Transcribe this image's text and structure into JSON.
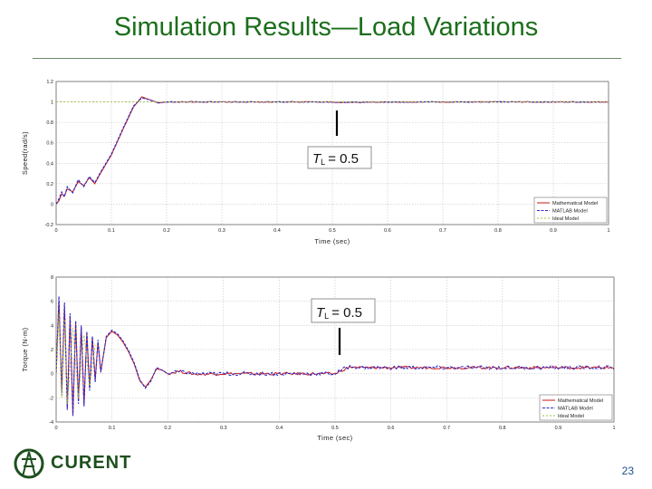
{
  "slide": {
    "title": "Simulation Results—Load Variations",
    "page_number": "23",
    "logo_text": "CURENT",
    "logo_icon": "tower-icon"
  },
  "colors": {
    "title": "#1b6e1b",
    "mathematical": "#cc2a2a",
    "matlab": "#2a2acc",
    "ideal": "#9bbf3a"
  },
  "chart_data": [
    {
      "type": "line",
      "xlabel": "Time (sec)",
      "ylabel": "Speed(rad/s)",
      "xlim": [
        0,
        1
      ],
      "ylim": [
        -0.2,
        1.2
      ],
      "xticks": [
        0,
        0.1,
        0.2,
        0.3,
        0.4,
        0.5,
        0.6,
        0.7,
        0.8,
        0.9,
        1
      ],
      "xtick_labels": [
        "0",
        "0.1",
        "0.2",
        "0.3",
        "0.4",
        "0.5",
        "0.6",
        "0.7",
        "0.8",
        "0.9",
        "1"
      ],
      "yticks": [
        -0.2,
        0,
        0.2,
        0.4,
        0.6,
        0.8,
        1,
        1.2
      ],
      "ytick_labels": [
        "-0.2",
        "0",
        "0.2",
        "0.4",
        "0.6",
        "0.8",
        "1",
        "1.2"
      ],
      "grid": true,
      "legend": "bottom-right",
      "annotation": {
        "text": "T",
        "subscript": "L",
        "value": "= 0.5",
        "x": 0.5
      },
      "series": [
        {
          "name": "Mathematical Model",
          "color": "#cc2a2a",
          "x": [
            0,
            0.005,
            0.01,
            0.015,
            0.02,
            0.03,
            0.04,
            0.05,
            0.06,
            0.07,
            0.08,
            0.1,
            0.12,
            0.14,
            0.155,
            0.17,
            0.185,
            0.2,
            0.25,
            0.3,
            0.5,
            0.51,
            0.6,
            0.8,
            1
          ],
          "y": [
            0,
            0.03,
            0.1,
            0.08,
            0.15,
            0.12,
            0.22,
            0.18,
            0.26,
            0.2,
            0.3,
            0.48,
            0.72,
            0.95,
            1.05,
            1.02,
            0.99,
            1.0,
            1.0,
            1.0,
            1.0,
            0.995,
            1.0,
            1.0,
            1.0
          ]
        },
        {
          "name": "MATLAB Model",
          "color": "#2a2acc",
          "x": [
            0,
            0.005,
            0.01,
            0.015,
            0.02,
            0.03,
            0.04,
            0.05,
            0.06,
            0.07,
            0.08,
            0.1,
            0.12,
            0.14,
            0.155,
            0.17,
            0.185,
            0.2,
            0.25,
            0.3,
            0.5,
            0.51,
            0.6,
            0.8,
            1
          ],
          "y": [
            0,
            0.05,
            0.12,
            0.07,
            0.17,
            0.11,
            0.24,
            0.17,
            0.27,
            0.21,
            0.31,
            0.49,
            0.73,
            0.96,
            1.04,
            1.02,
            0.99,
            1.0,
            1.0,
            1.0,
            1.0,
            0.995,
            1.0,
            1.0,
            1.0
          ]
        },
        {
          "name": "Ideal Model",
          "color": "#9bbf3a",
          "x": [
            0,
            0.1,
            0.2,
            0.3,
            0.5,
            0.6,
            0.8,
            1
          ],
          "y": [
            1.0,
            1.0,
            1.0,
            1.0,
            1.0,
            1.0,
            1.0,
            1.0
          ]
        }
      ]
    },
    {
      "type": "line",
      "xlabel": "Time (sec)",
      "ylabel": "Torque (N-m)",
      "xlim": [
        0,
        1
      ],
      "ylim": [
        -4,
        8
      ],
      "xticks": [
        0,
        0.1,
        0.2,
        0.3,
        0.4,
        0.5,
        0.6,
        0.7,
        0.8,
        0.9,
        1
      ],
      "xtick_labels": [
        "0",
        "0.1",
        "0.2",
        "0.3",
        "0.4",
        "0.5",
        "0.6",
        "0.7",
        "0.8",
        "0.9",
        "1"
      ],
      "yticks": [
        -4,
        -2,
        0,
        2,
        4,
        6,
        8
      ],
      "ytick_labels": [
        "-4",
        "-2",
        "0",
        "2",
        "4",
        "6",
        "8"
      ],
      "grid": true,
      "legend": "bottom-right",
      "annotation": {
        "text": "T",
        "subscript": "L",
        "value": "= 0.5",
        "x": 0.5
      },
      "series": [
        {
          "name": "Mathematical Model",
          "color": "#cc2a2a",
          "x": [
            0,
            0.005,
            0.01,
            0.015,
            0.02,
            0.025,
            0.03,
            0.035,
            0.04,
            0.045,
            0.05,
            0.055,
            0.06,
            0.065,
            0.07,
            0.075,
            0.08,
            0.09,
            0.1,
            0.11,
            0.12,
            0.13,
            0.14,
            0.15,
            0.16,
            0.17,
            0.18,
            0.19,
            0.2,
            0.22,
            0.25,
            0.3,
            0.4,
            0.5,
            0.51,
            0.52,
            0.53,
            0.55,
            0.6,
            0.7,
            0.8,
            0.9,
            1
          ],
          "y": [
            0,
            6.0,
            -1.5,
            5.5,
            -2.8,
            4.8,
            -3.4,
            4.2,
            -2.2,
            3.8,
            -2.6,
            3.3,
            -1.2,
            3.0,
            -0.5,
            2.6,
            0.2,
            3.0,
            3.5,
            3.2,
            2.6,
            1.8,
            0.8,
            -0.6,
            -1.1,
            -0.5,
            0.4,
            0.3,
            0.0,
            0.2,
            -0.05,
            0.0,
            0.0,
            0.0,
            0.2,
            0.45,
            0.55,
            0.5,
            0.5,
            0.5,
            0.5,
            0.5,
            0.5
          ]
        },
        {
          "name": "MATLAB Model",
          "color": "#2a2acc",
          "x": [
            0,
            0.005,
            0.01,
            0.015,
            0.02,
            0.025,
            0.03,
            0.035,
            0.04,
            0.045,
            0.05,
            0.055,
            0.06,
            0.065,
            0.07,
            0.075,
            0.08,
            0.09,
            0.1,
            0.11,
            0.12,
            0.13,
            0.14,
            0.15,
            0.16,
            0.17,
            0.18,
            0.19,
            0.2,
            0.22,
            0.25,
            0.3,
            0.4,
            0.5,
            0.51,
            0.52,
            0.53,
            0.55,
            0.6,
            0.7,
            0.8,
            0.9,
            1
          ],
          "y": [
            0,
            6.4,
            -1.8,
            5.9,
            -3.0,
            5.0,
            -3.5,
            4.4,
            -2.5,
            4.0,
            -2.7,
            3.5,
            -1.4,
            3.1,
            -0.7,
            2.8,
            0.1,
            3.1,
            3.6,
            3.3,
            2.7,
            1.9,
            0.9,
            -0.5,
            -1.2,
            -0.6,
            0.5,
            0.3,
            0.0,
            0.15,
            0.0,
            0.0,
            0.0,
            0.0,
            0.25,
            0.5,
            0.6,
            0.5,
            0.5,
            0.5,
            0.5,
            0.5,
            0.5
          ]
        },
        {
          "name": "Ideal Model",
          "color": "#9bbf3a",
          "x": [
            0,
            0.005,
            0.01,
            0.015,
            0.02,
            0.03,
            0.04,
            0.05,
            0.06,
            0.07
          ],
          "y": [
            0,
            5.0,
            -2.0,
            4.5,
            -2.5,
            3.8,
            -2.0,
            3.2,
            -1.0,
            2.4
          ]
        }
      ]
    }
  ]
}
